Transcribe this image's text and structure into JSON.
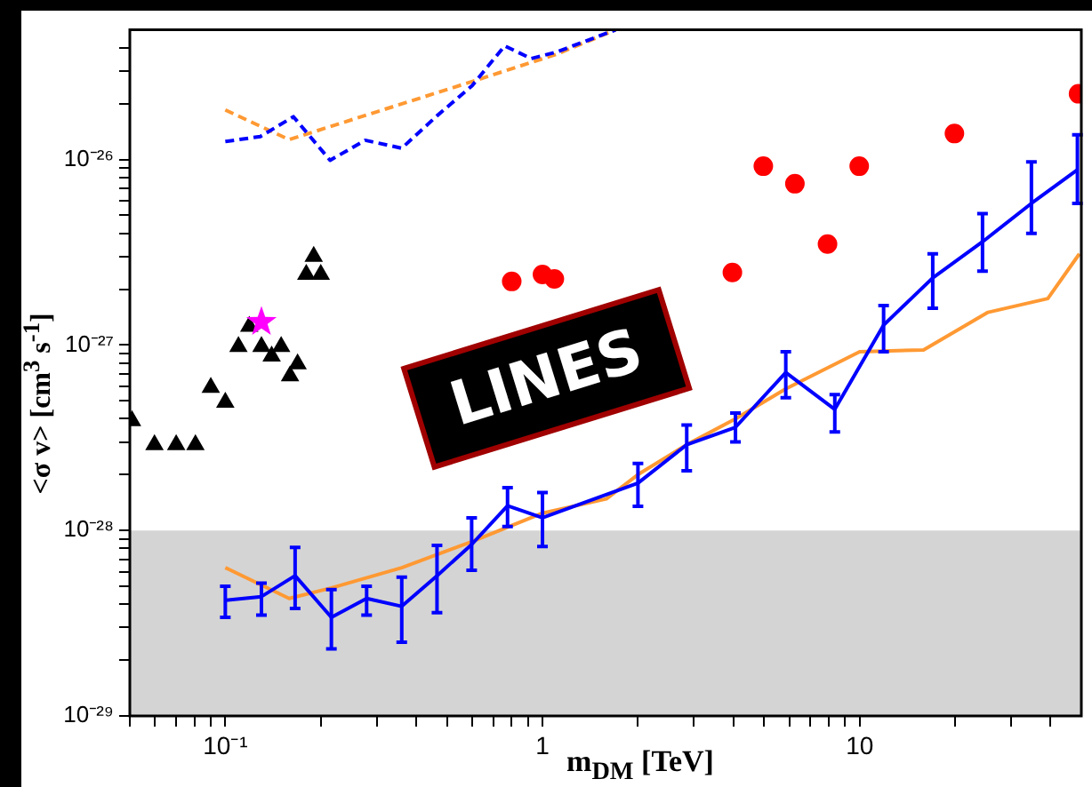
{
  "chart_data": {
    "type": "line",
    "xlabel": "m$_{DM}$ [TeV]",
    "ylabel": "<σ v> [cm$^{3}$ s$^{-1}$]",
    "log": "xy",
    "grid": false,
    "xlim": [
      0.05,
      50
    ],
    "ylim": [
      1e-29,
      5e-26
    ],
    "xticks": [
      {
        "value": 0.05,
        "label": null
      },
      {
        "value": 0.06,
        "label": null
      },
      {
        "value": 0.07,
        "label": null
      },
      {
        "value": 0.08,
        "label": null
      },
      {
        "value": 0.09,
        "label": null
      },
      {
        "value": 0.1,
        "label": "10⁻¹"
      },
      {
        "value": 0.2,
        "label": null
      },
      {
        "value": 0.3,
        "label": null
      },
      {
        "value": 0.4,
        "label": null
      },
      {
        "value": 0.5,
        "label": null
      },
      {
        "value": 0.6,
        "label": null
      },
      {
        "value": 0.7,
        "label": null
      },
      {
        "value": 0.8,
        "label": null
      },
      {
        "value": 0.9,
        "label": null
      },
      {
        "value": 1,
        "label": "1"
      },
      {
        "value": 2,
        "label": null
      },
      {
        "value": 3,
        "label": null
      },
      {
        "value": 4,
        "label": null
      },
      {
        "value": 5,
        "label": null
      },
      {
        "value": 6,
        "label": null
      },
      {
        "value": 7,
        "label": null
      },
      {
        "value": 8,
        "label": null
      },
      {
        "value": 9,
        "label": null
      },
      {
        "value": 10,
        "label": "10"
      },
      {
        "value": 20,
        "label": null
      },
      {
        "value": 30,
        "label": null
      },
      {
        "value": 40,
        "label": null
      }
    ],
    "yticks": [
      {
        "value": 1e-29,
        "label": "10⁻²⁹"
      },
      {
        "value": 2e-29,
        "label": null
      },
      {
        "value": 3e-29,
        "label": null
      },
      {
        "value": 4e-29,
        "label": null
      },
      {
        "value": 5e-29,
        "label": null
      },
      {
        "value": 6e-29,
        "label": null
      },
      {
        "value": 7e-29,
        "label": null
      },
      {
        "value": 8e-29,
        "label": null
      },
      {
        "value": 9e-29,
        "label": null
      },
      {
        "value": 1e-28,
        "label": "10⁻²⁸"
      },
      {
        "value": 2e-28,
        "label": null
      },
      {
        "value": 3e-28,
        "label": null
      },
      {
        "value": 4e-28,
        "label": null
      },
      {
        "value": 5e-28,
        "label": null
      },
      {
        "value": 6e-28,
        "label": null
      },
      {
        "value": 7e-28,
        "label": null
      },
      {
        "value": 8e-28,
        "label": null
      },
      {
        "value": 9e-28,
        "label": null
      },
      {
        "value": 1e-27,
        "label": "10⁻²⁷"
      },
      {
        "value": 2e-27,
        "label": null
      },
      {
        "value": 3e-27,
        "label": null
      },
      {
        "value": 4e-27,
        "label": null
      },
      {
        "value": 5e-27,
        "label": null
      },
      {
        "value": 6e-27,
        "label": null
      },
      {
        "value": 7e-27,
        "label": null
      },
      {
        "value": 8e-27,
        "label": null
      },
      {
        "value": 9e-27,
        "label": null
      },
      {
        "value": 1e-26,
        "label": "10⁻²⁶"
      },
      {
        "value": 2e-26,
        "label": null
      },
      {
        "value": 3e-26,
        "label": null
      },
      {
        "value": 4e-26,
        "label": null
      }
    ],
    "bands": [
      {
        "axis": "y",
        "from": 1e-29,
        "to": 1e-28,
        "color": "#d4d4d4"
      }
    ],
    "annotations": [
      "LINES"
    ],
    "series": [
      {
        "color": "#0000ff",
        "marker": "none",
        "line_style": "solid",
        "x": [
          0.1,
          0.13,
          0.166,
          0.216,
          0.279,
          0.36,
          0.465,
          0.598,
          0.776,
          1.0,
          2.0,
          2.85,
          4.06,
          5.85,
          8.35,
          11.9,
          17,
          24.4,
          34.8,
          48.6
        ],
        "values": [
          4.2e-29,
          4.4e-29,
          5.7e-29,
          3.4e-29,
          4.3e-29,
          3.9e-29,
          5.7e-29,
          8.4e-29,
          1.36e-28,
          1.17e-28,
          1.8e-28,
          2.9e-28,
          3.6e-28,
          7.1e-28,
          4.5e-28,
          1.28e-27,
          2.3e-27,
          3.6e-27,
          5.8e-27,
          8.8e-27
        ],
        "errors": [
          [
            3.4e-29,
            5e-29
          ],
          [
            3.5e-29,
            5.2e-29
          ],
          [
            3.8e-29,
            8.1e-29
          ],
          [
            2.3e-29,
            4.8e-29
          ],
          [
            3.5e-29,
            5e-29
          ],
          [
            2.5e-29,
            5.6e-29
          ],
          [
            3.6e-29,
            8.3e-29
          ],
          [
            6.1e-29,
            1.17e-28
          ],
          [
            1.05e-28,
            1.7e-28
          ],
          [
            8.2e-29,
            1.6e-28
          ],
          [
            1.35e-28,
            2.3e-28
          ],
          [
            2.1e-28,
            3.7e-28
          ],
          [
            3e-28,
            4.3e-28
          ],
          [
            5.2e-28,
            9.2e-28
          ],
          [
            3.4e-28,
            5.4e-28
          ],
          [
            9.2e-28,
            1.63e-27
          ],
          [
            1.58e-27,
            3.1e-27
          ],
          [
            2.5e-27,
            5.1e-27
          ],
          [
            4e-27,
            9.7e-27
          ],
          [
            5.8e-27,
            1.36e-26
          ]
        ]
      },
      {
        "color": "#ff9933",
        "marker": "none",
        "line_style": "solid",
        "x": [
          0.1,
          0.159,
          0.216,
          0.36,
          0.598,
          1.0,
          1.59,
          2.0,
          2.85,
          4.06,
          5.85,
          10,
          15.9,
          25.4,
          39.2,
          49.3
        ],
        "values": [
          6.3e-29,
          4.3e-29,
          4.9e-29,
          6.3e-29,
          8.7e-29,
          1.24e-28,
          1.48e-28,
          2e-28,
          2.9e-28,
          4e-28,
          5.8e-28,
          9.2e-28,
          9.4e-28,
          1.5e-27,
          1.78e-27,
          3.1e-27
        ]
      },
      {
        "color": "#0000ff",
        "marker": "none",
        "line_style": "dashed",
        "x": [
          0.1,
          0.129,
          0.164,
          0.214,
          0.276,
          0.36,
          0.465,
          0.6,
          0.76,
          0.92,
          1.11,
          1.7
        ],
        "values": [
          1.25e-26,
          1.33e-26,
          1.7e-26,
          9.9e-27,
          1.27e-26,
          1.15e-26,
          1.72e-26,
          2.5e-26,
          4.1e-26,
          3.5e-26,
          3.8e-26,
          5e-26
        ]
      },
      {
        "color": "#ff9933",
        "marker": "none",
        "line_style": "dashed",
        "x": [
          0.1,
          0.159,
          0.587,
          1.11,
          1.7
        ],
        "values": [
          1.85e-26,
          1.28e-26,
          2.6e-26,
          3.7e-26,
          5e-26
        ]
      },
      {
        "type": "scatter",
        "color": "#000000",
        "marker": "triangle",
        "x": [
          0.0508,
          0.0598,
          0.07,
          0.0805,
          0.09,
          0.1,
          0.11,
          0.119,
          0.13,
          0.14,
          0.15,
          0.16,
          0.169,
          0.18,
          0.19,
          0.2
        ],
        "values": [
          3.9e-28,
          2.9e-28,
          2.9e-28,
          2.9e-28,
          5.9e-28,
          4.9e-28,
          9.8e-28,
          1.26e-27,
          9.8e-28,
          8.7e-28,
          9.8e-28,
          6.8e-28,
          7.9e-28,
          2.4e-27,
          3e-27,
          2.4e-27
        ]
      },
      {
        "type": "scatter",
        "color": "#ff00ff",
        "marker": "star",
        "x": [
          0.13
        ],
        "values": [
          1.33e-27
        ]
      },
      {
        "type": "scatter",
        "color": "#ff0000",
        "marker": "circle",
        "x": [
          0.8,
          1.0,
          1.09,
          3.97,
          4.97,
          6.25,
          7.92,
          9.97,
          19.9,
          49
        ],
        "values": [
          2.2e-27,
          2.4e-27,
          2.27e-27,
          2.46e-27,
          9.2e-27,
          7.4e-27,
          3.5e-27,
          9.2e-27,
          1.38e-26,
          2.26e-26
        ]
      }
    ]
  }
}
